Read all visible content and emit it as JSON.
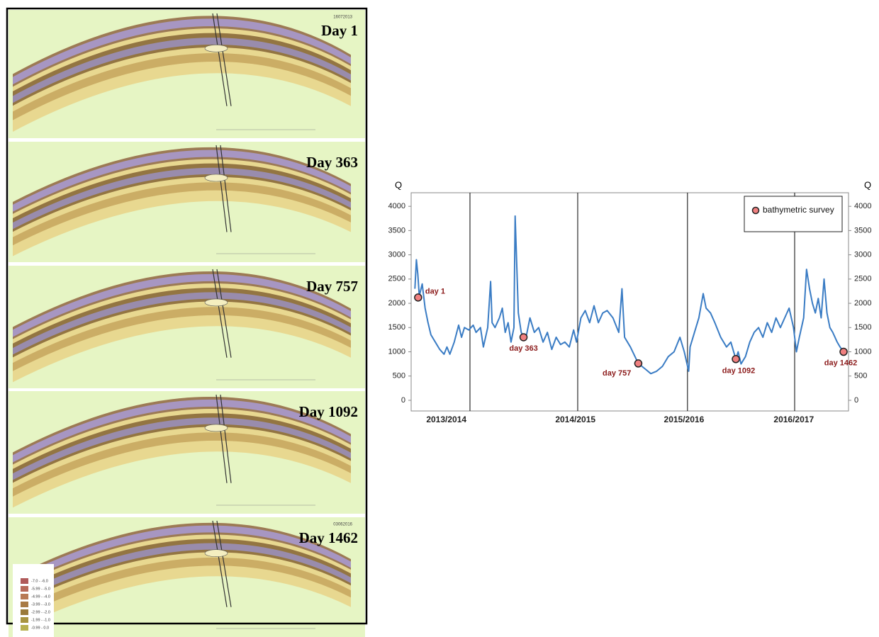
{
  "map_panels": [
    {
      "label": "Day 1",
      "date": "16072013"
    },
    {
      "label": "Day 363"
    },
    {
      "label": "Day 757"
    },
    {
      "label": "Day 1092"
    },
    {
      "label": "Day 1462",
      "date": "03062016"
    }
  ],
  "map_legend": [
    {
      "label": "-7.0 - -6.0",
      "color": "#b05a5a"
    },
    {
      "label": "-5.99 - -5.0",
      "color": "#b86a5a"
    },
    {
      "label": "-4.99 - -4.0",
      "color": "#b87a55"
    },
    {
      "label": "-3.99 - -3.0",
      "color": "#a87a45"
    },
    {
      "label": "-2.99 - -2.0",
      "color": "#9a7a3a"
    },
    {
      "label": "-1.99 - -1.0",
      "color": "#a89440"
    },
    {
      "label": "-0.99 - 0.0",
      "color": "#b8b050"
    }
  ],
  "chart_data": {
    "type": "line",
    "y_label": "Q",
    "y2_label": "Q",
    "xlim": [
      -23,
      1479
    ],
    "ylim": [
      -220,
      4280
    ],
    "y2lim": [
      -220,
      4280
    ],
    "yticks": [
      0,
      500,
      1000,
      1500,
      2000,
      2500,
      3000,
      3500,
      4000
    ],
    "y2ticks": [
      0,
      500,
      1000,
      1500,
      2000,
      2500,
      3000,
      3500,
      4000
    ],
    "xticks": [
      {
        "value": 98,
        "label": "2013/2014"
      },
      {
        "value": 541,
        "label": "2014/2015"
      },
      {
        "value": 914,
        "label": "2015/2016"
      },
      {
        "value": 1291,
        "label": "2016/2017"
      }
    ],
    "year_lines": [
      179,
      549,
      926,
      1294
    ],
    "series": [
      {
        "color": "#3a7cc4",
        "x": [
          -10,
          -5,
          0,
          5,
          15,
          25,
          35,
          45,
          60,
          75,
          90,
          100,
          110,
          125,
          140,
          150,
          160,
          175,
          190,
          200,
          215,
          225,
          240,
          250,
          255,
          265,
          280,
          290,
          300,
          310,
          320,
          330,
          334,
          345,
          355,
          363,
          370,
          385,
          400,
          415,
          430,
          445,
          460,
          475,
          490,
          505,
          520,
          535,
          545,
          560,
          575,
          590,
          605,
          620,
          635,
          650,
          670,
          690,
          701,
          710,
          730,
          757,
          780,
          800,
          820,
          840,
          860,
          880,
          900,
          915,
          930,
          935,
          950,
          965,
          980,
          990,
          1005,
          1020,
          1040,
          1060,
          1075,
          1092,
          1100,
          1110,
          1125,
          1140,
          1155,
          1170,
          1185,
          1200,
          1215,
          1230,
          1245,
          1260,
          1275,
          1290,
          1300,
          1310,
          1325,
          1335,
          1345,
          1355,
          1365,
          1375,
          1385,
          1395,
          1405,
          1415,
          1425,
          1440,
          1450,
          1462,
          1472
        ],
        "values": [
          2300,
          2900,
          2600,
          2150,
          2400,
          1900,
          1600,
          1350,
          1200,
          1050,
          950,
          1100,
          950,
          1200,
          1550,
          1300,
          1500,
          1450,
          1550,
          1400,
          1500,
          1100,
          1500,
          2450,
          1600,
          1500,
          1700,
          1900,
          1400,
          1600,
          1200,
          1500,
          3800,
          1800,
          1400,
          1300,
          1250,
          1700,
          1400,
          1500,
          1200,
          1400,
          1050,
          1300,
          1150,
          1200,
          1100,
          1450,
          1200,
          1700,
          1850,
          1600,
          1950,
          1600,
          1800,
          1850,
          1700,
          1400,
          2300,
          1300,
          1100,
          760,
          650,
          550,
          600,
          700,
          900,
          1000,
          1300,
          1000,
          600,
          1100,
          1400,
          1700,
          2200,
          1900,
          1800,
          1600,
          1300,
          1100,
          1200,
          850,
          1000,
          750,
          900,
          1200,
          1400,
          1500,
          1300,
          1600,
          1400,
          1700,
          1500,
          1700,
          1900,
          1500,
          1000,
          1300,
          1700,
          2700,
          2300,
          2000,
          1800,
          2100,
          1700,
          2500,
          1800,
          1500,
          1400,
          1200,
          1100,
          1000,
          1050
        ]
      }
    ],
    "markers": {
      "name": "bathymetric survey",
      "color": "#f08080",
      "x": [
        1,
        363,
        757,
        1092,
        1462
      ],
      "values": [
        2120,
        1300,
        760,
        850,
        1000
      ],
      "labels": [
        "day 1",
        "day 363",
        "day 757",
        "day 1092",
        "day 1462"
      ]
    }
  }
}
